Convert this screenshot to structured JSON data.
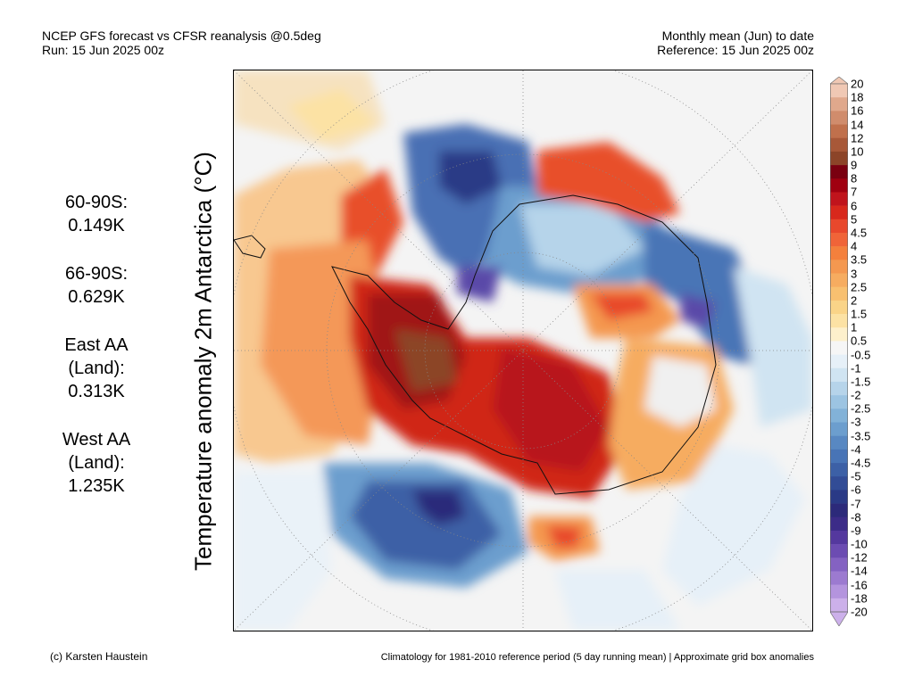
{
  "header": {
    "title_line1": "NCEP GFS forecast vs CFSR reanalysis @0.5deg",
    "title_line2": "Run: 15 Jun 2025 00z",
    "right_line1": "Monthly mean (Jun) to date",
    "right_line2": "Reference: 15 Jun 2025 00z"
  },
  "ylabel": "Temperature anomaly 2m Antarctica (°C)",
  "stats": [
    {
      "lines": [
        "60-90S:",
        "0.149K"
      ]
    },
    {
      "lines": [
        "66-90S:",
        "0.629K"
      ]
    },
    {
      "lines": [
        "East AA",
        "(Land):",
        "0.313K"
      ]
    },
    {
      "lines": [
        "West AA",
        "(Land):",
        "1.235K"
      ]
    }
  ],
  "colorbar": {
    "labels": [
      "20",
      "18",
      "16",
      "14",
      "12",
      "10",
      "9",
      "8",
      "7",
      "6",
      "5",
      "4.5",
      "4",
      "3.5",
      "3",
      "2.5",
      "2",
      "1.5",
      "1",
      "0.5",
      "-0.5",
      "-1",
      "-1.5",
      "-2",
      "-2.5",
      "-3",
      "-3.5",
      "-4",
      "-4.5",
      "-5",
      "-6",
      "-7",
      "-8",
      "-9",
      "-10",
      "-12",
      "-14",
      "-16",
      "-18",
      "-20"
    ],
    "colors": [
      "#f0c8b4",
      "#e0a88c",
      "#d08c6c",
      "#c0704c",
      "#a85838",
      "#8c4428",
      "#7a0010",
      "#a00010",
      "#c0141c",
      "#d8281c",
      "#e8482c",
      "#f06438",
      "#f4803c",
      "#f49850",
      "#f6ac60",
      "#f8c070",
      "#fad488",
      "#fce2a4",
      "#fdf0cc",
      "#f6f6f6",
      "#e6f0f8",
      "#d0e4f2",
      "#b6d4ea",
      "#9cc4e2",
      "#82b2d8",
      "#6c9ece",
      "#5888c2",
      "#4874b6",
      "#3c60a6",
      "#324c96",
      "#2a3a86",
      "#2c2a7a",
      "#3c2c88",
      "#54389e",
      "#6c4cb2",
      "#8462c2",
      "#9c7ad0",
      "#b494de",
      "#ccb0ea"
    ]
  },
  "footer": {
    "left": "(c) Karsten Haustein",
    "right": "Climatology for 1981-2010 reference period (5 day running mean) | Approximate grid box anomalies"
  }
}
